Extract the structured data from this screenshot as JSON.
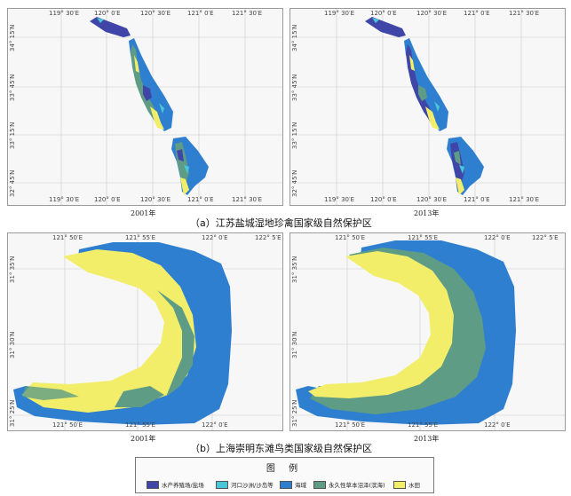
{
  "colors": {
    "aquaculture": "#3f46a8",
    "estuary_sand": "#49c6d8",
    "sea": "#2f7fd0",
    "marsh": "#5e9c86",
    "water": "#f2ee6a"
  },
  "section_a": {
    "caption": "（a）江苏盐城湿地珍禽国家级自然保护区",
    "top_lon_labels": [
      "119° 30′E",
      "120° 0′E",
      "120° 30′E",
      "121° 0′E",
      "121° 30′E"
    ],
    "bottom_lon_labels": [
      "119° 30′E",
      "120° 0′E",
      "120° 30′E",
      "121° 0′E",
      "121° 30′E"
    ],
    "lat_labels": [
      "34° 15′N",
      "33° 45′N",
      "33° 15′N",
      "32° 45′N"
    ],
    "years": [
      "2001年",
      "2013年"
    ]
  },
  "section_b": {
    "caption": "（b）上海崇明东滩鸟类国家级自然保护区",
    "top_lon_labels": [
      "121° 50′E",
      "121° 55′E",
      "122° 0′E",
      "122° 5′E"
    ],
    "bottom_lon_labels": [
      "121° 50′E",
      "121° 55′E",
      "122° 0′E"
    ],
    "lat_labels": [
      "31° 35′N",
      "31° 30′N",
      "31° 25′N"
    ],
    "years": [
      "2001年",
      "2013年"
    ]
  },
  "legend": {
    "title": "图 例",
    "items": [
      {
        "label": "水产养殖场/盐场",
        "color_key": "aquaculture"
      },
      {
        "label": "河口沙洲/沙岛等",
        "color_key": "estuary_sand"
      },
      {
        "label": "海域",
        "color_key": "sea"
      },
      {
        "label": "永久性草本沼泽(滨海)",
        "color_key": "marsh"
      },
      {
        "label": "水田",
        "color_key": "water"
      }
    ]
  }
}
